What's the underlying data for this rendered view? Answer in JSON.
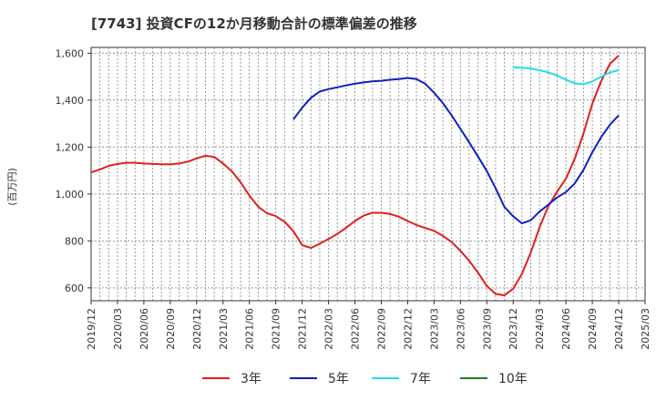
{
  "chart_data": {
    "type": "line",
    "title": "[7743]  投資CFの12か月移動合計の標準偏差の推移",
    "ylabel": "(百万円)",
    "xlabel": "",
    "ylim": [
      545,
      1625
    ],
    "y_ticks": [
      600,
      800,
      1000,
      1200,
      1400,
      1600
    ],
    "y_tick_labels": [
      "600",
      "800",
      "1,000",
      "1,200",
      "1,400",
      "1,600"
    ],
    "x_range": [
      "2019-12",
      "2025-03"
    ],
    "x_tick_labels": [
      "2019/12",
      "2020/03",
      "2020/06",
      "2020/09",
      "2020/12",
      "2021/03",
      "2021/06",
      "2021/09",
      "2021/12",
      "2022/03",
      "2022/06",
      "2022/09",
      "2022/12",
      "2023/03",
      "2023/06",
      "2023/09",
      "2023/12",
      "2024/03",
      "2024/06",
      "2024/09",
      "2024/12",
      "2025/03"
    ],
    "grid": true,
    "legend_position": "bottom",
    "series": [
      {
        "name": "3年",
        "color": "#e02020",
        "x": [
          "2019-12",
          "2020-01",
          "2020-02",
          "2020-03",
          "2020-04",
          "2020-05",
          "2020-06",
          "2020-07",
          "2020-08",
          "2020-09",
          "2020-10",
          "2020-11",
          "2020-12",
          "2021-01",
          "2021-02",
          "2021-03",
          "2021-04",
          "2021-05",
          "2021-06",
          "2021-07",
          "2021-08",
          "2021-09",
          "2021-10",
          "2021-11",
          "2021-12",
          "2022-01",
          "2022-02",
          "2022-03",
          "2022-04",
          "2022-05",
          "2022-06",
          "2022-07",
          "2022-08",
          "2022-09",
          "2022-10",
          "2022-11",
          "2022-12",
          "2023-01",
          "2023-02",
          "2023-03",
          "2023-04",
          "2023-05",
          "2023-06",
          "2023-07",
          "2023-08",
          "2023-09",
          "2023-10",
          "2023-11",
          "2023-12",
          "2024-01",
          "2024-02",
          "2024-03",
          "2024-04",
          "2024-05",
          "2024-06",
          "2024-07",
          "2024-08",
          "2024-09",
          "2024-10",
          "2024-11",
          "2024-12"
        ],
        "values": [
          1092,
          1105,
          1120,
          1128,
          1133,
          1133,
          1130,
          1128,
          1127,
          1127,
          1130,
          1138,
          1152,
          1163,
          1158,
          1130,
          1097,
          1050,
          993,
          946,
          918,
          906,
          882,
          842,
          782,
          770,
          788,
          808,
          830,
          856,
          885,
          908,
          920,
          920,
          915,
          903,
          885,
          868,
          855,
          843,
          822,
          795,
          758,
          715,
          665,
          608,
          574,
          568,
          596,
          660,
          750,
          858,
          948,
          1010,
          1065,
          1150,
          1258,
          1385,
          1480,
          1555,
          1590
        ]
      },
      {
        "name": "5年",
        "color": "#1020c0",
        "x": [
          "2021-11",
          "2021-12",
          "2022-01",
          "2022-02",
          "2022-03",
          "2022-04",
          "2022-05",
          "2022-06",
          "2022-07",
          "2022-08",
          "2022-09",
          "2022-10",
          "2022-11",
          "2022-12",
          "2023-01",
          "2023-02",
          "2023-03",
          "2023-04",
          "2023-05",
          "2023-06",
          "2023-07",
          "2023-08",
          "2023-09",
          "2023-10",
          "2023-11",
          "2023-12",
          "2024-01",
          "2024-02",
          "2024-03",
          "2024-04",
          "2024-05",
          "2024-06",
          "2024-07",
          "2024-08",
          "2024-09",
          "2024-10",
          "2024-11",
          "2024-12"
        ],
        "values": [
          1318,
          1368,
          1410,
          1437,
          1447,
          1455,
          1463,
          1470,
          1476,
          1480,
          1483,
          1487,
          1490,
          1495,
          1490,
          1470,
          1432,
          1388,
          1335,
          1278,
          1220,
          1160,
          1098,
          1025,
          945,
          905,
          875,
          888,
          925,
          955,
          985,
          1008,
          1045,
          1103,
          1178,
          1242,
          1295,
          1335
        ]
      },
      {
        "name": "7年",
        "color": "#20e0e8",
        "x": [
          "2023-12",
          "2024-01",
          "2024-02",
          "2024-03",
          "2024-04",
          "2024-05",
          "2024-06",
          "2024-07",
          "2024-08",
          "2024-09",
          "2024-10",
          "2024-11",
          "2024-12"
        ],
        "values": [
          1540,
          1538,
          1535,
          1528,
          1518,
          1505,
          1488,
          1472,
          1468,
          1480,
          1500,
          1518,
          1528
        ]
      },
      {
        "name": "10年",
        "color": "#208020",
        "x": [],
        "values": []
      }
    ]
  }
}
